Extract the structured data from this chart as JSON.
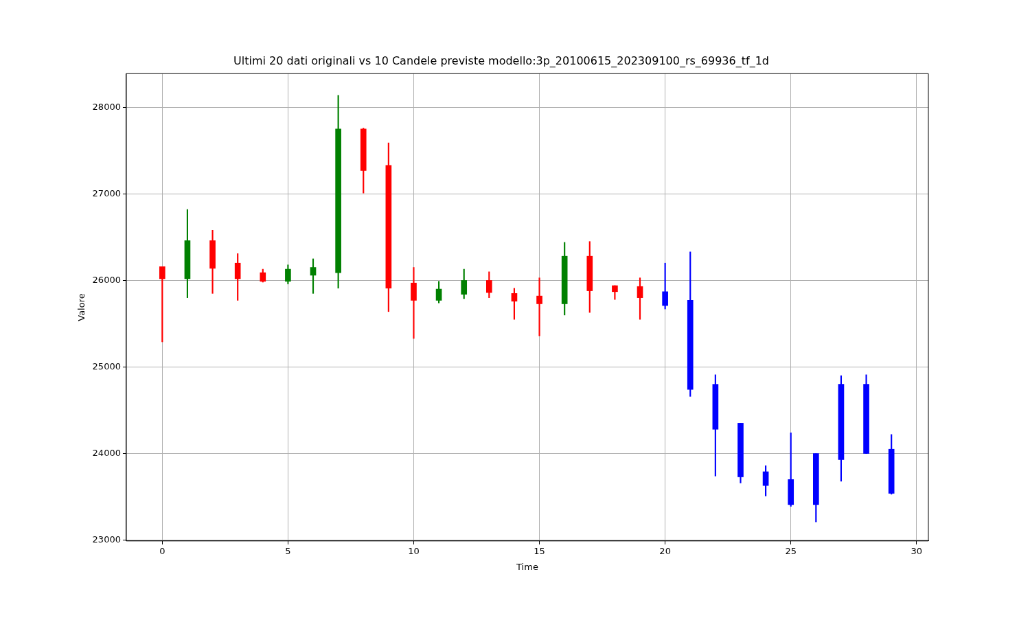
{
  "chart_data": {
    "type": "candlestick",
    "title": "Ultimi 20 dati originali vs 10 Candele previste modello:3p_20100615_202309100_rs_69936_tf_1d",
    "xlabel": "Time",
    "ylabel": "Valore",
    "x": [
      0,
      1,
      2,
      3,
      4,
      5,
      6,
      7,
      8,
      9,
      10,
      11,
      12,
      13,
      14,
      15,
      16,
      17,
      18,
      19,
      20,
      21,
      22,
      23,
      24,
      25,
      26,
      27,
      28,
      29
    ],
    "ohlc": [
      [
        26160,
        26160,
        25290,
        26020
      ],
      [
        26020,
        26820,
        25800,
        26460
      ],
      [
        26460,
        26580,
        25850,
        26140
      ],
      [
        26200,
        26310,
        25770,
        26020
      ],
      [
        26090,
        26130,
        25980,
        25990
      ],
      [
        25990,
        26180,
        25960,
        26130
      ],
      [
        26060,
        26250,
        25850,
        26150
      ],
      [
        26090,
        28140,
        25910,
        27750
      ],
      [
        27750,
        27760,
        27010,
        27270
      ],
      [
        27330,
        27590,
        25640,
        25910
      ],
      [
        25970,
        26150,
        25330,
        25770
      ],
      [
        25770,
        25990,
        25740,
        25900
      ],
      [
        25840,
        26130,
        25790,
        26000
      ],
      [
        26000,
        26100,
        25800,
        25860
      ],
      [
        25850,
        25910,
        25550,
        25760
      ],
      [
        25820,
        26030,
        25360,
        25730
      ],
      [
        25730,
        26440,
        25600,
        26280
      ],
      [
        26280,
        26450,
        25630,
        25880
      ],
      [
        25940,
        25940,
        25780,
        25870
      ],
      [
        25930,
        26030,
        25550,
        25800
      ],
      [
        25870,
        26200,
        25670,
        25710
      ],
      [
        25770,
        26330,
        24660,
        24740
      ],
      [
        24800,
        24910,
        23740,
        24280
      ],
      [
        24350,
        24350,
        23660,
        23730
      ],
      [
        23790,
        23860,
        23510,
        23630
      ],
      [
        23700,
        24240,
        23390,
        23410
      ],
      [
        23410,
        24000,
        23210,
        24000
      ],
      [
        23930,
        24900,
        23680,
        24800
      ],
      [
        24000,
        24910,
        24000,
        24800
      ],
      [
        24050,
        24220,
        23530,
        23540
      ]
    ],
    "colors": [
      "#ff0000",
      "#008000",
      "#ff0000",
      "#ff0000",
      "#ff0000",
      "#008000",
      "#008000",
      "#008000",
      "#ff0000",
      "#ff0000",
      "#ff0000",
      "#008000",
      "#008000",
      "#ff0000",
      "#ff0000",
      "#ff0000",
      "#008000",
      "#ff0000",
      "#ff0000",
      "#ff0000",
      "#0000ff",
      "#0000ff",
      "#0000ff",
      "#0000ff",
      "#0000ff",
      "#0000ff",
      "#0000ff",
      "#0000ff",
      "#0000ff",
      "#0000ff"
    ],
    "xlim": [
      -1.43,
      30.47
    ],
    "xticks": [
      0,
      5,
      10,
      15,
      20,
      25,
      30
    ],
    "ylim": [
      22990,
      28390
    ],
    "yticks": [
      23000,
      24000,
      25000,
      26000,
      27000,
      28000
    ],
    "grid": true
  }
}
